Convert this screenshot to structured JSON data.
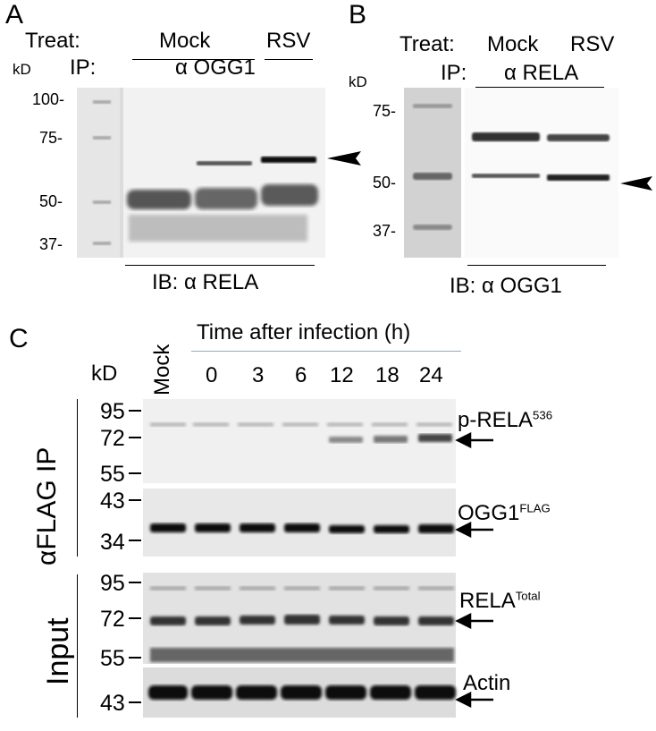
{
  "panels": {
    "A": {
      "letter": "A",
      "treat_label": "Treat:",
      "ip_label": "IP:",
      "kd": "kD",
      "groups": [
        "Mock",
        "RSV"
      ],
      "ip_antibody": "α OGG1",
      "markers": [
        "100-",
        "75-",
        "50-",
        "37-"
      ],
      "ib": "IB:  α RELA"
    },
    "B": {
      "letter": "B",
      "treat_label": "Treat:",
      "ip_label": "IP:",
      "kd": "kD",
      "groups": [
        "Mock",
        "RSV"
      ],
      "ip_antibody": "α RELA",
      "markers": [
        "75-",
        "50-",
        "37-"
      ],
      "ib": "IB:  α OGG1"
    },
    "C": {
      "letter": "C",
      "time_header": "Time after infection (h)",
      "mock": "Mock",
      "kd": "kD",
      "timepoints": [
        "0",
        "3",
        "6",
        "12",
        "18",
        "24"
      ],
      "section_ip": "αFLAG IP",
      "section_input": "Input",
      "markers_ip1": [
        "95",
        "72",
        "55"
      ],
      "markers_ip2": [
        "43",
        "34"
      ],
      "markers_input1": [
        "95",
        "72",
        "55"
      ],
      "markers_input2": [
        "43"
      ],
      "blots": {
        "p_rela": {
          "name": "p-RELA",
          "sup": "536"
        },
        "ogg1": {
          "name": "OGG1",
          "sup": "FLAG"
        },
        "rela_total": {
          "name": "RELA",
          "sup": "Total"
        },
        "actin": {
          "name": "Actin"
        }
      }
    }
  }
}
